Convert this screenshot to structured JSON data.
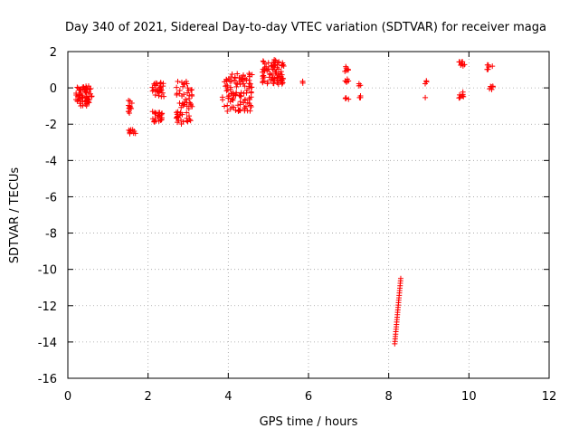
{
  "chart_data": {
    "type": "scatter",
    "title": "Day 340 of 2021, Sidereal Day-to-day VTEC variation (SDTVAR) for receiver maga",
    "xlabel": "GPS time / hours",
    "ylabel": "SDTVAR / TECUs",
    "xlim": [
      0,
      12
    ],
    "ylim": [
      -16,
      2
    ],
    "xticks": [
      0,
      2,
      4,
      6,
      8,
      10,
      12
    ],
    "yticks": [
      2,
      0,
      -2,
      -4,
      -6,
      -8,
      -10,
      -12,
      -14,
      -16
    ],
    "grid": true,
    "marker": "+",
    "color": "#ff0000",
    "clusters": [
      {
        "name": "c1",
        "x": [
          0.2,
          0.6
        ],
        "y": [
          -1.0,
          0.1
        ],
        "n": 70
      },
      {
        "name": "c2a",
        "x": [
          1.5,
          1.6
        ],
        "y": [
          -1.4,
          -0.6
        ],
        "n": 12
      },
      {
        "name": "c2b",
        "x": [
          1.5,
          1.7
        ],
        "y": [
          -2.6,
          -2.3
        ],
        "n": 10
      },
      {
        "name": "c3a",
        "x": [
          2.1,
          2.4
        ],
        "y": [
          -0.5,
          0.3
        ],
        "n": 30
      },
      {
        "name": "c3b",
        "x": [
          2.1,
          2.4
        ],
        "y": [
          -1.9,
          -1.3
        ],
        "n": 25
      },
      {
        "name": "c4",
        "x": [
          2.7,
          3.1
        ],
        "y": [
          -2.0,
          0.4
        ],
        "n": 60
      },
      {
        "name": "c5",
        "x": [
          3.85,
          4.6
        ],
        "y": [
          -1.3,
          0.8
        ],
        "n": 110
      },
      {
        "name": "c6",
        "x": [
          4.85,
          5.4
        ],
        "y": [
          0.2,
          1.6
        ],
        "n": 80
      },
      {
        "name": "c7",
        "x": [
          5.85,
          5.9
        ],
        "y": [
          0.2,
          0.4
        ],
        "n": 3
      },
      {
        "name": "c8a",
        "x": [
          6.9,
          7.0
        ],
        "y": [
          0.9,
          1.2
        ],
        "n": 6
      },
      {
        "name": "c8b",
        "x": [
          6.9,
          7.0
        ],
        "y": [
          0.3,
          0.5
        ],
        "n": 5
      },
      {
        "name": "c8c",
        "x": [
          6.9,
          7.0
        ],
        "y": [
          -0.7,
          -0.5
        ],
        "n": 5
      },
      {
        "name": "c9a",
        "x": [
          7.25,
          7.3
        ],
        "y": [
          0.1,
          0.3
        ],
        "n": 3
      },
      {
        "name": "c9b",
        "x": [
          7.25,
          7.3
        ],
        "y": [
          -0.6,
          -0.4
        ],
        "n": 3
      },
      {
        "name": "c10a",
        "x": [
          8.9,
          8.95
        ],
        "y": [
          0.2,
          0.4
        ],
        "n": 3
      },
      {
        "name": "c10b",
        "x": [
          8.9,
          8.95
        ],
        "y": [
          -0.6,
          -0.5
        ],
        "n": 1
      },
      {
        "name": "c11a",
        "x": [
          9.75,
          9.9
        ],
        "y": [
          1.2,
          1.5
        ],
        "n": 8
      },
      {
        "name": "c11b",
        "x": [
          9.75,
          9.9
        ],
        "y": [
          -0.6,
          -0.2
        ],
        "n": 8
      },
      {
        "name": "c12a",
        "x": [
          10.45,
          10.6
        ],
        "y": [
          1.0,
          1.3
        ],
        "n": 6
      },
      {
        "name": "c12b",
        "x": [
          10.45,
          10.6
        ],
        "y": [
          -0.1,
          0.1
        ],
        "n": 6
      }
    ],
    "trend_line": {
      "x_start": 8.15,
      "y_start": -14.1,
      "x_end": 8.3,
      "y_end": -10.5,
      "n": 28
    }
  }
}
